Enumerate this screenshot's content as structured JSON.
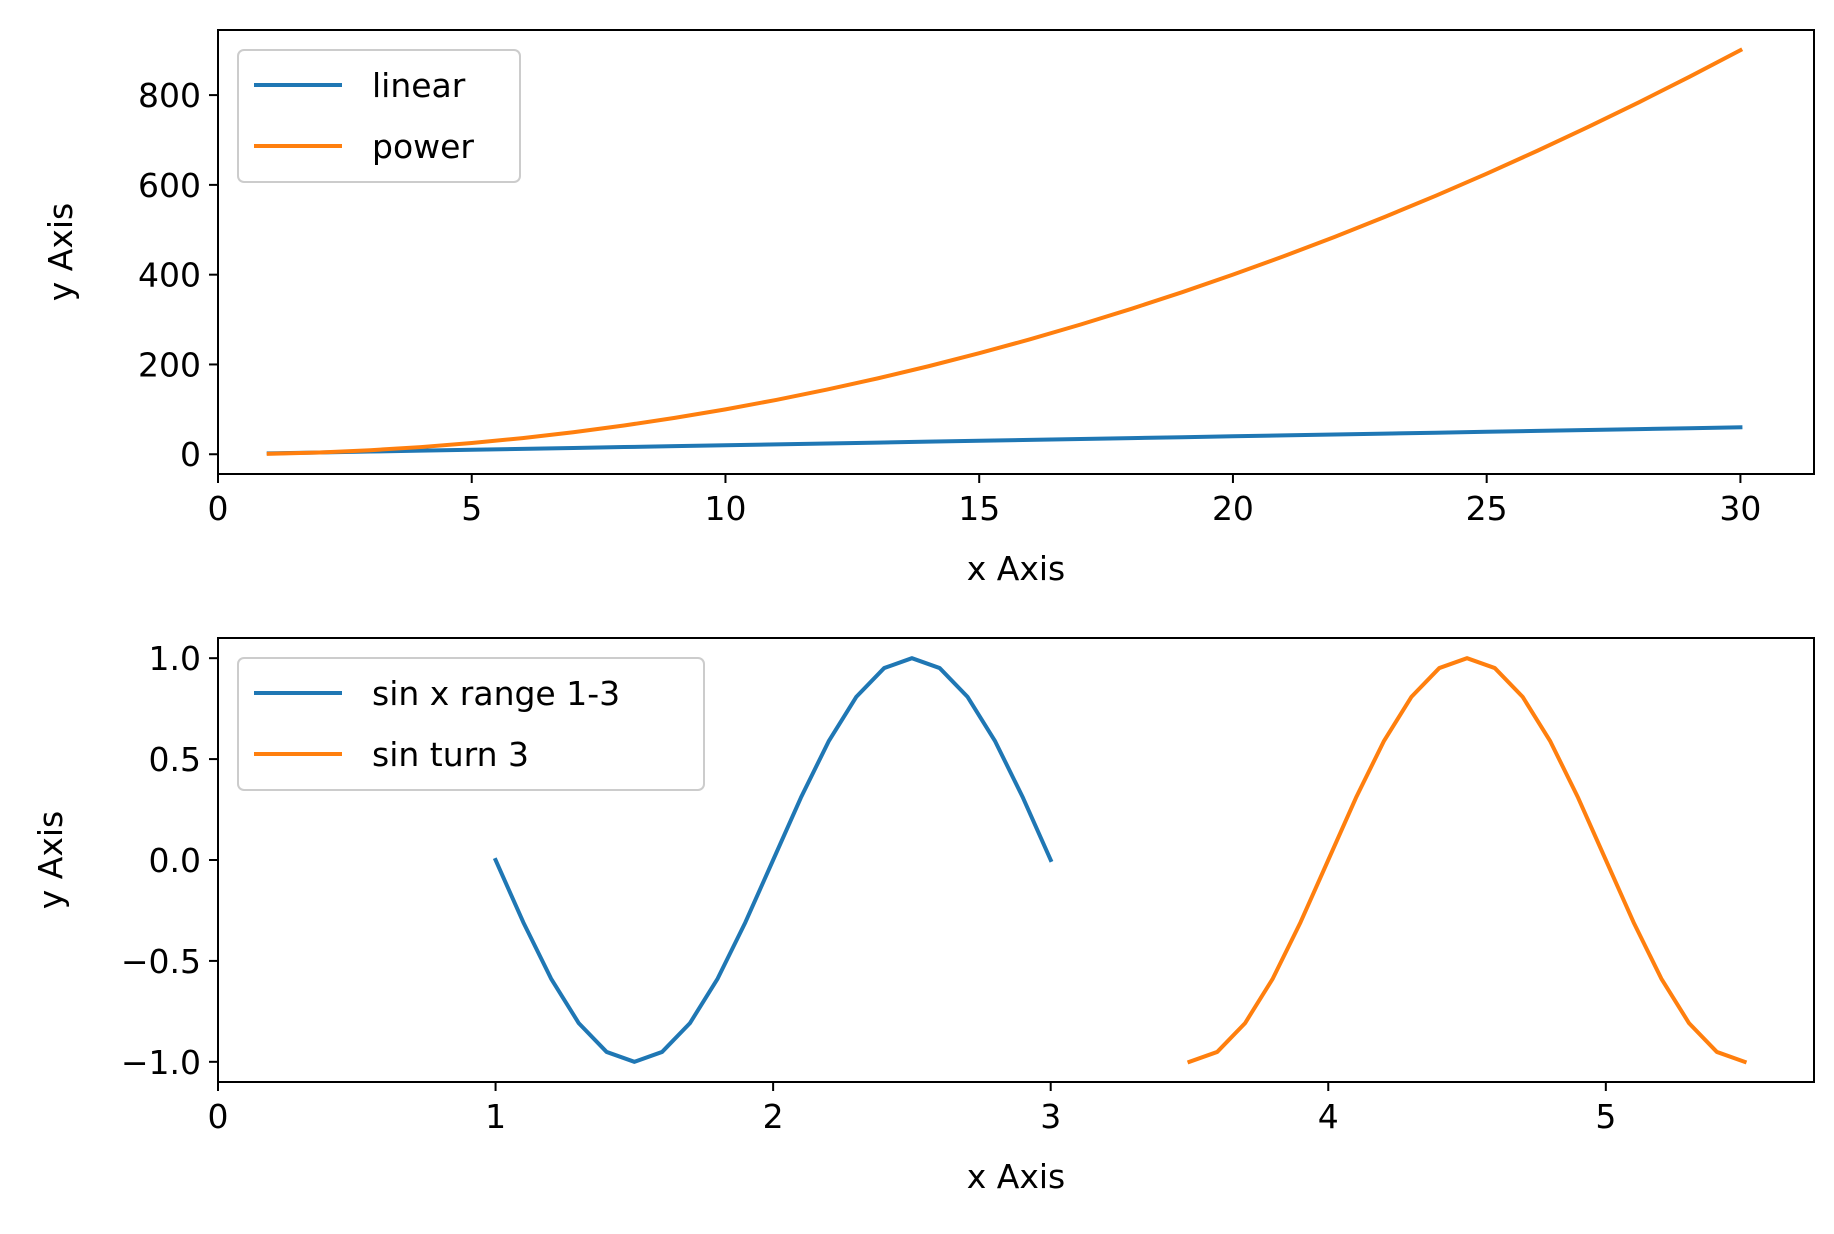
{
  "chart_data": [
    {
      "type": "line",
      "xlabel": "x Axis",
      "ylabel": "y Axis",
      "xlim": [
        0,
        31.45
      ],
      "ylim": [
        -44,
        945
      ],
      "xticks": [
        0,
        5,
        10,
        15,
        20,
        25,
        30
      ],
      "xtick_labels": [
        "0",
        "5",
        "10",
        "15",
        "20",
        "25",
        "30"
      ],
      "yticks": [
        0,
        200,
        400,
        600,
        800
      ],
      "ytick_labels": [
        "0",
        "200",
        "400",
        "600",
        "800"
      ],
      "grid": false,
      "legend_position": "upper-left",
      "series": [
        {
          "name": "linear",
          "color": "#1f77b4",
          "x": [
            1,
            2,
            3,
            4,
            5,
            6,
            7,
            8,
            9,
            10,
            11,
            12,
            13,
            14,
            15,
            16,
            17,
            18,
            19,
            20,
            21,
            22,
            23,
            24,
            25,
            26,
            27,
            28,
            29,
            30
          ],
          "y": [
            2,
            4,
            6,
            8,
            10,
            12,
            14,
            16,
            18,
            20,
            22,
            24,
            26,
            28,
            30,
            32,
            34,
            36,
            38,
            40,
            42,
            44,
            46,
            48,
            50,
            52,
            54,
            56,
            58,
            60
          ]
        },
        {
          "name": "power",
          "color": "#ff7f0e",
          "x": [
            1,
            2,
            3,
            4,
            5,
            6,
            7,
            8,
            9,
            10,
            11,
            12,
            13,
            14,
            15,
            16,
            17,
            18,
            19,
            20,
            21,
            22,
            23,
            24,
            25,
            26,
            27,
            28,
            29,
            30
          ],
          "y": [
            1,
            4,
            9,
            16,
            25,
            36,
            49,
            64,
            81,
            100,
            121,
            144,
            169,
            196,
            225,
            256,
            289,
            324,
            361,
            400,
            441,
            484,
            529,
            576,
            625,
            676,
            729,
            784,
            841,
            900
          ]
        }
      ]
    },
    {
      "type": "line",
      "xlabel": "x Axis",
      "ylabel": "y Axis",
      "xlim": [
        0,
        5.75
      ],
      "ylim": [
        -1.1,
        1.1
      ],
      "xticks": [
        0,
        1,
        2,
        3,
        4,
        5
      ],
      "xtick_labels": [
        "0",
        "1",
        "2",
        "3",
        "4",
        "5"
      ],
      "yticks": [
        -1.0,
        -0.5,
        0.0,
        0.5,
        1.0
      ],
      "ytick_labels": [
        "−1.0",
        "−0.5",
        "0.0",
        "0.5",
        "1.0"
      ],
      "grid": false,
      "legend_position": "upper-left",
      "series": [
        {
          "name": "sin x range 1-3",
          "color": "#1f77b4",
          "x": [
            1.0,
            1.1,
            1.2,
            1.3,
            1.4,
            1.5,
            1.6,
            1.7,
            1.8,
            1.9,
            2.0,
            2.1,
            2.2,
            2.3,
            2.4,
            2.5,
            2.6,
            2.7,
            2.8,
            2.9,
            3.0
          ],
          "y": [
            0.0,
            -0.309,
            -0.588,
            -0.809,
            -0.951,
            -1.0,
            -0.951,
            -0.809,
            -0.588,
            -0.309,
            0.0,
            0.309,
            0.588,
            0.809,
            0.951,
            1.0,
            0.951,
            0.809,
            0.588,
            0.309,
            0.0
          ]
        },
        {
          "name": "sin turn 3",
          "color": "#ff7f0e",
          "x": [
            3.5,
            3.6,
            3.7,
            3.8,
            3.9,
            4.0,
            4.1,
            4.2,
            4.3,
            4.4,
            4.5,
            4.6,
            4.7,
            4.8,
            4.9,
            5.0,
            5.1,
            5.2,
            5.3,
            5.4,
            5.5
          ],
          "y": [
            -1.0,
            -0.951,
            -0.809,
            -0.588,
            -0.309,
            0.0,
            0.309,
            0.588,
            0.809,
            0.951,
            1.0,
            0.951,
            0.809,
            0.588,
            0.309,
            0.0,
            -0.309,
            -0.588,
            -0.809,
            -0.951,
            -1.0
          ]
        }
      ]
    }
  ]
}
